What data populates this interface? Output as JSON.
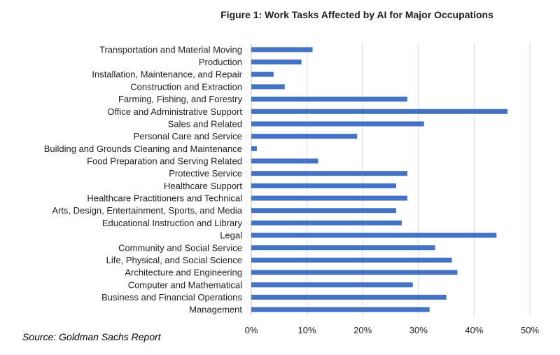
{
  "chart_data": {
    "type": "bar",
    "orientation": "horizontal",
    "title": "Figure 1: Work Tasks Affected by AI for Major Occupations",
    "source": "Source: Goldman Sachs Report",
    "xlim": [
      0,
      50
    ],
    "xticks": [
      "0%",
      "10%",
      "20%",
      "30%",
      "40%",
      "50%"
    ],
    "grid": "vertical",
    "bar_color": "#4472C4",
    "categories": [
      "Transportation and Material Moving",
      "Production",
      "Installation, Maintenance, and Repair",
      "Construction and Extraction",
      "Farming, Fishing, and Forestry",
      "Office and Administrative Support",
      "Sales and Related",
      "Personal Care and Service",
      "Building and Grounds Cleaning and Maintenance",
      "Food Preparation and Serving Related",
      "Protective Service",
      "Healthcare Support",
      "Healthcare Practitioners and Technical",
      "Arts, Design, Entertainment, Sports, and Media",
      "Educational Instruction and Library",
      "Legal",
      "Community and Social Service",
      "Life, Physical, and Social Science",
      "Architecture and Engineering",
      "Computer and Mathematical",
      "Business and Financial Operations",
      "Management"
    ],
    "values": [
      11,
      9,
      4,
      6,
      28,
      46,
      31,
      19,
      1,
      12,
      28,
      26,
      28,
      26,
      27,
      44,
      33,
      36,
      37,
      29,
      35,
      32
    ]
  }
}
